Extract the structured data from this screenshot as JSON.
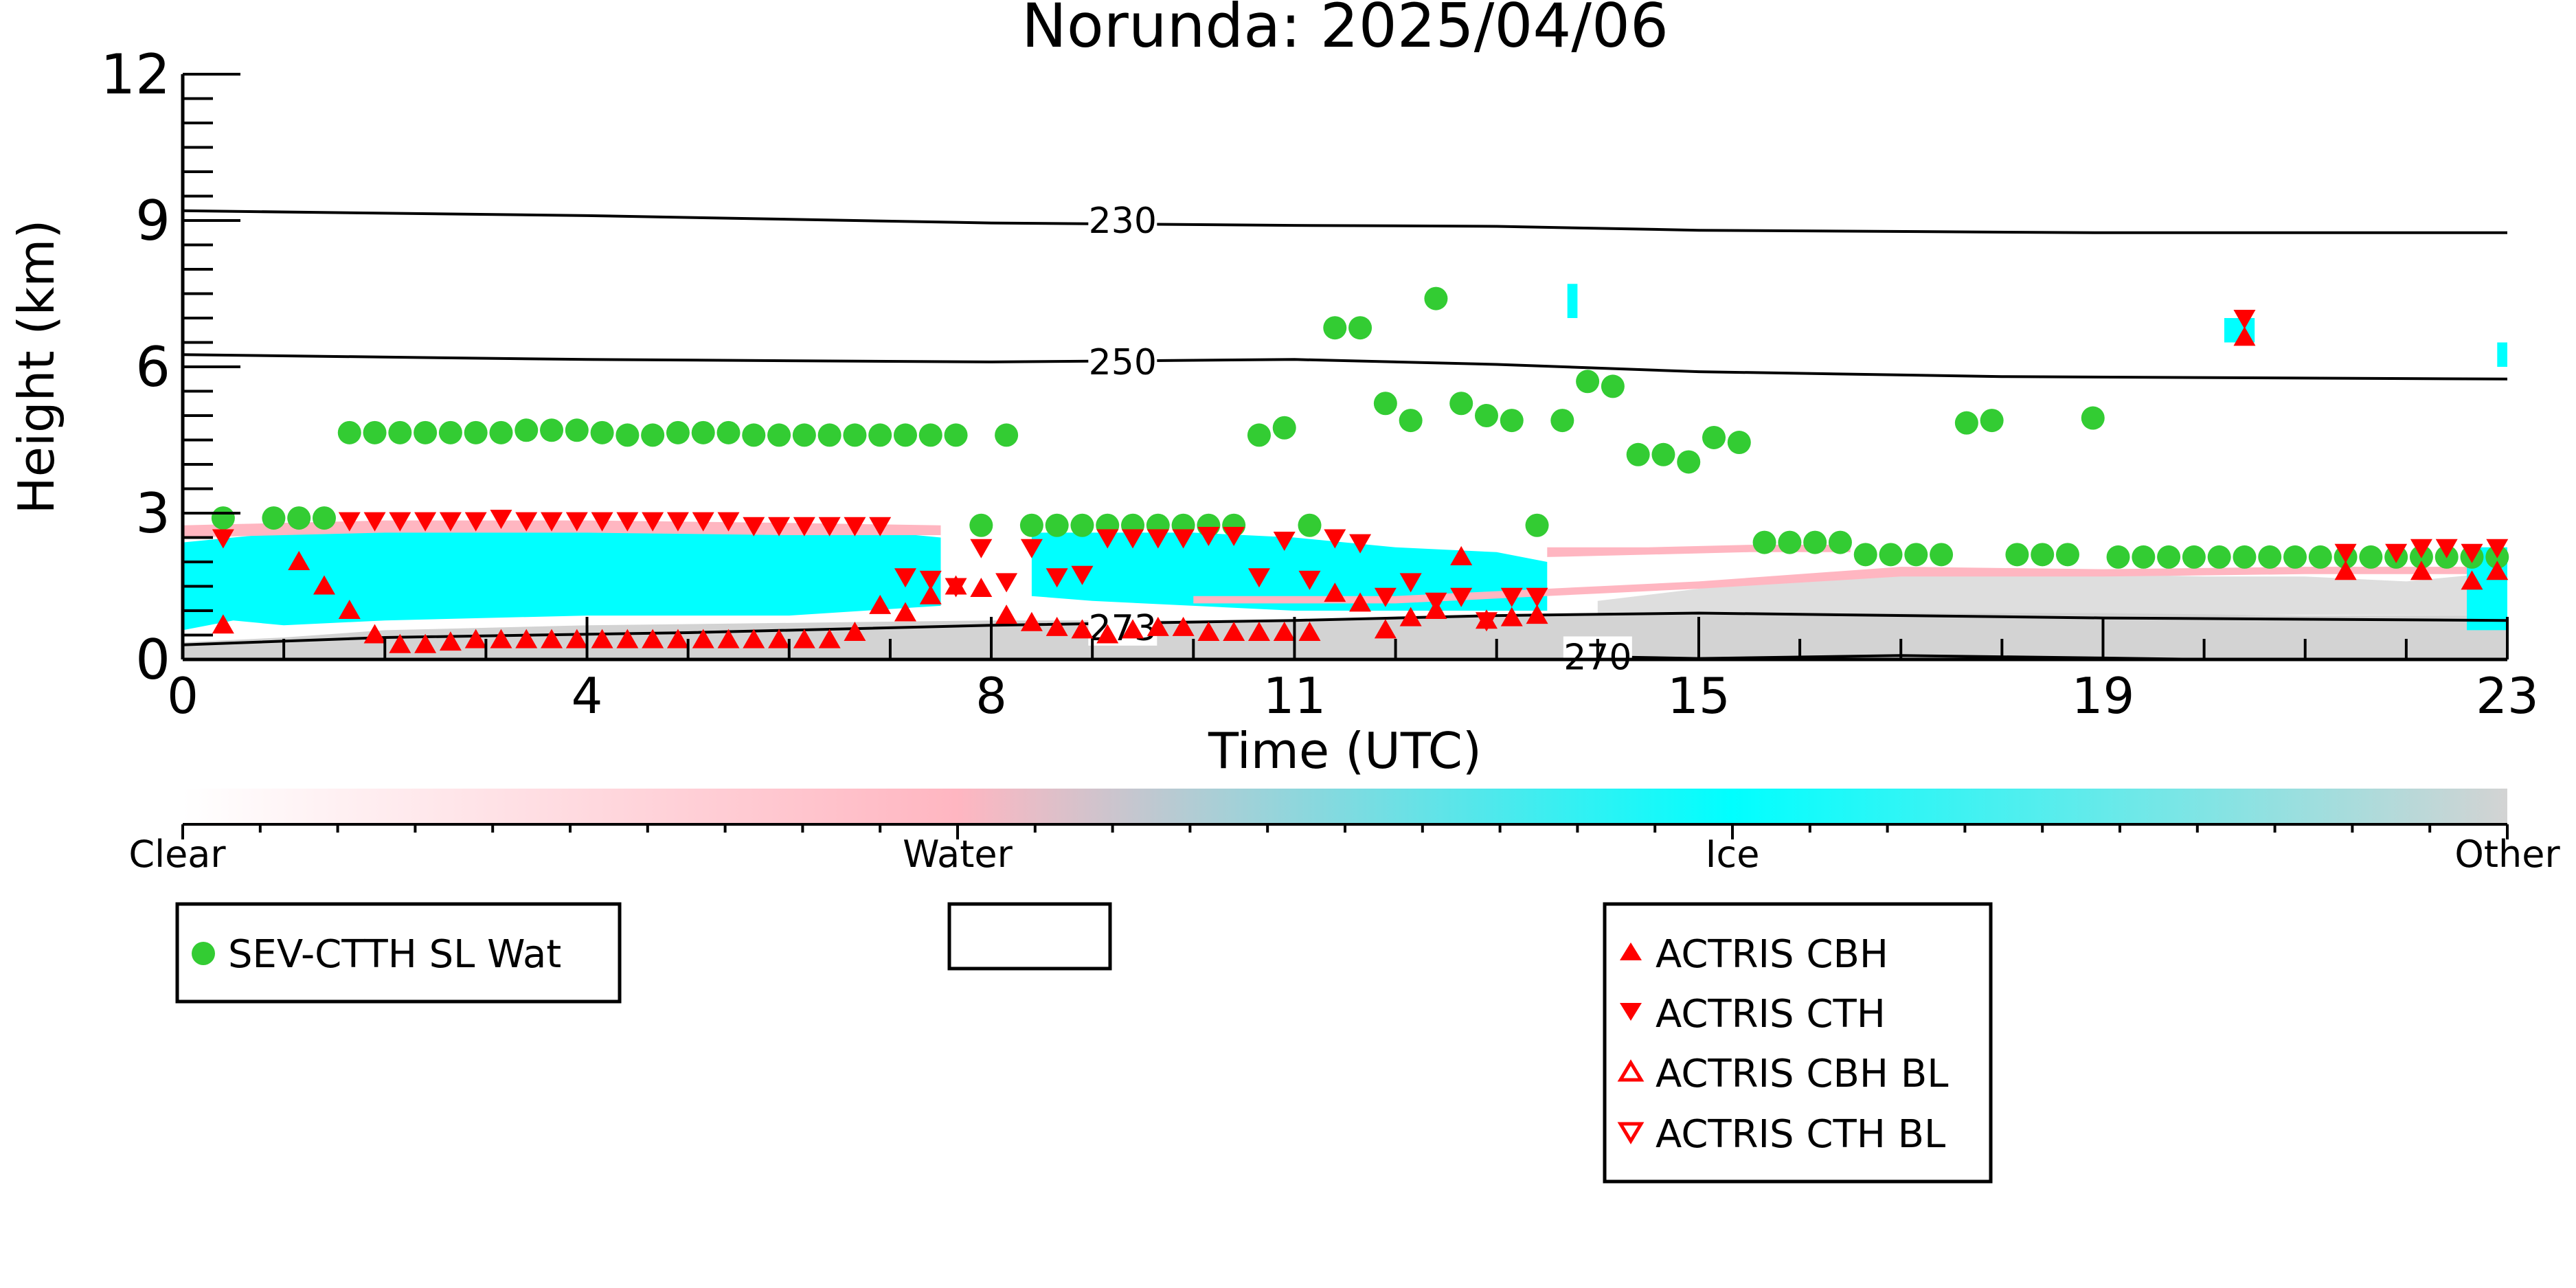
{
  "chart_data": {
    "type": "scatter",
    "title": "Norunda: 2025/04/06",
    "xlabel": "Time (UTC)",
    "ylabel": "Height (km)",
    "xlim": [
      0,
      23
    ],
    "ylim": [
      0,
      12
    ],
    "x_ticks": [
      0,
      4,
      8,
      11,
      15,
      19,
      23
    ],
    "y_ticks": [
      0,
      3,
      6,
      9,
      12
    ],
    "grid": false,
    "colors": {
      "clear": "#ffffff",
      "water": "#ffb6c1",
      "ice": "#00ffff",
      "other": "#d3d3d3",
      "sev": "#33cc33",
      "actris": "#ff0000",
      "contour": "#000000"
    },
    "colorbar": {
      "labels": [
        "Clear",
        "Water",
        "Ice",
        "Other"
      ]
    },
    "contours": [
      {
        "label": "230",
        "x": [
          0,
          4,
          8,
          11,
          13,
          15,
          19,
          23
        ],
        "y": [
          9.2,
          9.1,
          8.95,
          8.9,
          8.88,
          8.8,
          8.75,
          8.75
        ]
      },
      {
        "label": "250",
        "x": [
          0,
          4,
          8,
          11,
          13,
          15,
          18,
          23
        ],
        "y": [
          6.25,
          6.15,
          6.1,
          6.15,
          6.05,
          5.9,
          5.8,
          5.75
        ]
      },
      {
        "label": "273",
        "x": [
          0,
          2,
          5,
          8,
          11,
          13,
          15,
          19,
          23
        ],
        "y": [
          0.3,
          0.45,
          0.55,
          0.7,
          0.8,
          0.9,
          0.95,
          0.85,
          0.8
        ]
      },
      {
        "label": "270",
        "x": [
          14.2,
          15,
          17,
          19,
          20,
          23
        ],
        "y": [
          0.05,
          0.02,
          0.08,
          0.03,
          0.0,
          0.0
        ]
      }
    ],
    "series": [
      {
        "name": "SEV-CTTH SL Wat",
        "marker": "circle",
        "x": [
          0.4,
          0.9,
          1.15,
          1.4,
          1.65,
          1.9,
          2.15,
          2.4,
          2.65,
          2.9,
          3.15,
          3.4,
          3.65,
          3.9,
          4.15,
          4.4,
          4.65,
          4.9,
          5.15,
          5.4,
          5.65,
          5.9,
          6.15,
          6.4,
          6.65,
          6.9,
          7.15,
          7.4,
          7.65,
          7.9,
          8.15,
          8.4,
          8.65,
          8.9,
          9.15,
          9.4,
          9.65,
          9.9,
          10.15,
          10.4,
          10.65,
          10.9,
          11.15,
          11.4,
          11.65,
          11.9,
          12.15,
          12.4,
          12.65,
          12.9,
          13.15,
          13.4,
          13.65,
          13.9,
          14.15,
          14.4,
          14.65,
          14.9,
          15.15,
          15.4,
          15.65,
          15.9,
          16.15,
          16.4,
          16.65,
          16.9,
          17.15,
          17.4,
          17.65,
          17.9,
          18.15,
          18.4,
          18.65,
          18.9,
          19.15,
          19.4,
          19.65,
          19.9,
          20.15,
          20.4,
          20.65,
          20.9,
          21.15,
          21.4,
          21.65,
          21.9,
          22.15,
          22.4,
          22.65,
          22.9
        ],
        "y": [
          2.9,
          2.9,
          2.9,
          2.9,
          4.65,
          4.65,
          4.65,
          4.65,
          4.65,
          4.65,
          4.65,
          4.7,
          4.7,
          4.7,
          4.65,
          4.6,
          4.6,
          4.65,
          4.65,
          4.65,
          4.6,
          4.6,
          4.6,
          4.6,
          4.6,
          4.6,
          4.6,
          4.6,
          4.6,
          2.75,
          4.6,
          2.75,
          2.75,
          2.75,
          2.75,
          2.75,
          2.75,
          2.75,
          2.75,
          2.75,
          4.6,
          4.75,
          2.75,
          6.8,
          6.8,
          5.25,
          4.9,
          7.4,
          5.25,
          5.0,
          4.9,
          2.75,
          4.9,
          5.7,
          5.6,
          4.2,
          4.2,
          4.05,
          4.55,
          4.45,
          2.4,
          2.4,
          2.4,
          2.4,
          2.15,
          2.15,
          2.15,
          2.15,
          4.85,
          4.9,
          2.15,
          2.15,
          2.15,
          4.95,
          2.1,
          2.1,
          2.1,
          2.1,
          2.1,
          2.1,
          2.1,
          2.1,
          2.1,
          2.1,
          2.1,
          2.1,
          2.1,
          2.1,
          2.1,
          2.1
        ]
      },
      {
        "name": "ACTRIS CBH",
        "marker": "triangle-up",
        "x": [
          0.4,
          1.15,
          1.4,
          1.65,
          1.9,
          2.15,
          2.4,
          2.65,
          2.9,
          3.15,
          3.4,
          3.65,
          3.9,
          4.15,
          4.4,
          4.65,
          4.9,
          5.15,
          5.4,
          5.65,
          5.9,
          6.15,
          6.4,
          6.65,
          6.9,
          7.15,
          7.4,
          7.65,
          7.9,
          8.15,
          8.4,
          8.65,
          8.9,
          9.15,
          9.4,
          9.65,
          9.9,
          10.15,
          10.4,
          10.65,
          10.9,
          11.15,
          11.4,
          11.65,
          11.9,
          12.15,
          12.4,
          12.65,
          12.9,
          13.15,
          13.4,
          20.4,
          21.4,
          22.15,
          22.65,
          22.9
        ],
        "y": [
          0.7,
          2.0,
          1.5,
          1.0,
          0.5,
          0.3,
          0.3,
          0.35,
          0.4,
          0.4,
          0.4,
          0.4,
          0.4,
          0.4,
          0.4,
          0.4,
          0.4,
          0.4,
          0.4,
          0.4,
          0.4,
          0.4,
          0.4,
          0.55,
          1.1,
          0.95,
          1.3,
          1.5,
          1.45,
          0.9,
          0.75,
          0.65,
          0.6,
          0.5,
          0.6,
          0.65,
          0.65,
          0.55,
          0.55,
          0.55,
          0.55,
          0.55,
          1.35,
          1.15,
          0.6,
          0.85,
          1.0,
          2.1,
          0.8,
          0.85,
          0.9,
          6.6,
          1.8,
          1.8,
          1.6,
          1.8
        ]
      },
      {
        "name": "ACTRIS CTH",
        "marker": "triangle-down",
        "x": [
          0.4,
          1.65,
          1.9,
          2.15,
          2.4,
          2.65,
          2.9,
          3.15,
          3.4,
          3.65,
          3.9,
          4.15,
          4.4,
          4.65,
          4.9,
          5.15,
          5.4,
          5.65,
          5.9,
          6.15,
          6.4,
          6.65,
          6.9,
          7.15,
          7.4,
          7.65,
          7.9,
          8.15,
          8.4,
          8.65,
          8.9,
          9.15,
          9.4,
          9.65,
          9.9,
          10.15,
          10.4,
          10.65,
          10.9,
          11.15,
          11.4,
          11.65,
          11.9,
          12.15,
          12.4,
          12.65,
          12.9,
          13.15,
          13.4,
          20.4,
          21.4,
          21.9,
          22.15,
          22.4,
          22.65,
          22.9
        ],
        "y": [
          2.5,
          2.85,
          2.85,
          2.85,
          2.85,
          2.85,
          2.85,
          2.9,
          2.85,
          2.85,
          2.85,
          2.85,
          2.85,
          2.85,
          2.85,
          2.85,
          2.85,
          2.75,
          2.75,
          2.75,
          2.75,
          2.75,
          2.75,
          1.7,
          1.65,
          1.5,
          2.3,
          1.6,
          2.3,
          1.7,
          1.75,
          2.5,
          2.5,
          2.5,
          2.5,
          2.55,
          2.55,
          1.7,
          2.45,
          1.65,
          2.5,
          2.4,
          1.3,
          1.6,
          1.2,
          1.3,
          0.8,
          1.3,
          1.3,
          7.0,
          2.2,
          2.2,
          2.3,
          2.3,
          2.2,
          2.3
        ]
      }
    ],
    "legends": {
      "left": {
        "items": [
          "SEV-CTTH SL Wat"
        ]
      },
      "middle": {
        "items": []
      },
      "right": {
        "items": [
          "ACTRIS CBH",
          "ACTRIS CTH",
          "ACTRIS CBH BL",
          "ACTRIS CTH BL"
        ]
      }
    }
  }
}
